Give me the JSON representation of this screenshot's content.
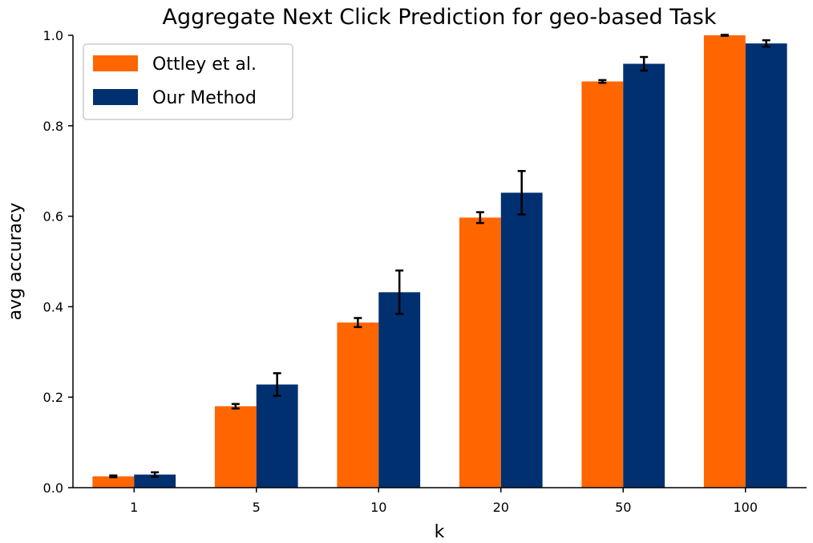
{
  "chart_data": {
    "type": "bar",
    "title": "Aggregate Next Click Prediction for geo-based Task",
    "xlabel": "k",
    "ylabel": "avg accuracy",
    "categories": [
      "1",
      "5",
      "10",
      "20",
      "50",
      "100"
    ],
    "ylim": [
      0,
      1.0
    ],
    "yticks": [
      "0.0",
      "0.2",
      "0.4",
      "0.6",
      "0.8",
      "1.0"
    ],
    "grid": false,
    "legend_position": "top-left",
    "series": [
      {
        "name": "Ottley et al.",
        "color": "#ff6600",
        "values": [
          0.025,
          0.18,
          0.365,
          0.597,
          0.898,
          1.0
        ],
        "errors": [
          0.002,
          0.005,
          0.01,
          0.012,
          0.003,
          0.001
        ]
      },
      {
        "name": "Our Method",
        "color": "#003070",
        "values": [
          0.029,
          0.228,
          0.432,
          0.652,
          0.937,
          0.982
        ],
        "errors": [
          0.005,
          0.025,
          0.048,
          0.048,
          0.015,
          0.007
        ]
      }
    ]
  }
}
